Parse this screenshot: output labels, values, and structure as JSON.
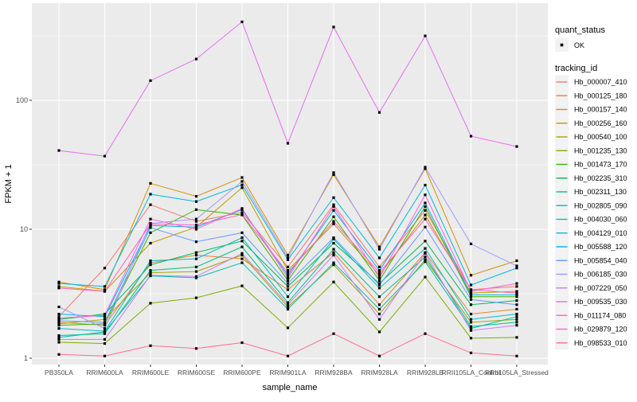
{
  "figure": {
    "background": "#FFFFFF",
    "panel_background": "#EBEBEB",
    "grid_color": "#FFFFFF",
    "point_color": "#000000",
    "axis_text_color": "#4D4D4D",
    "title_color": "#000000",
    "legend_key_background": "#F2F2F2"
  },
  "legend": {
    "quant_status_title": "quant_status",
    "ok_label": "OK",
    "tracking_id_title": "tracking_id"
  },
  "chart_data": {
    "type": "line",
    "title": "",
    "xlabel": "sample_name",
    "ylabel": "FPKM + 1",
    "y_scale": "log10",
    "ylim": [
      0.9,
      560
    ],
    "grid": true,
    "legend_position": "right",
    "y_ticks": [
      1,
      10,
      100
    ],
    "y_tick_labels": [
      "1",
      "10",
      "100"
    ],
    "y_minor_ticks": [
      3.162,
      31.62,
      316.2
    ],
    "categories": [
      "PB350LA",
      "RRIM600LA",
      "RRIM600LE",
      "RRIM600SE",
      "RRIM600PE",
      "RRIM901LA",
      "RRIM928BA",
      "RRIM928LA",
      "RRIM928LB",
      "RRII105LA_Control",
      "RRII105LA_Stressed"
    ],
    "quant_status": "OK",
    "series": [
      {
        "name": "Hb_000007_410",
        "color": "#F8766D",
        "values": [
          2.1,
          5.0,
          15.5,
          11.5,
          13.5,
          5.1,
          15.5,
          5.1,
          14.0,
          3.4,
          3.6
        ]
      },
      {
        "name": "Hb_000125_180",
        "color": "#EA8331",
        "values": [
          1.9,
          1.8,
          5.5,
          6.3,
          5.9,
          3.4,
          6.6,
          2.6,
          6.6,
          2.2,
          2.4
        ]
      },
      {
        "name": "Hb_000157_140",
        "color": "#D89000",
        "values": [
          3.9,
          3.4,
          22.7,
          18.0,
          25.2,
          6.3,
          26.5,
          7.3,
          29.5,
          4.4,
          5.7
        ]
      },
      {
        "name": "Hb_000256_160",
        "color": "#C09B00",
        "values": [
          3.6,
          3.3,
          7.8,
          10.4,
          21.0,
          4.8,
          11.0,
          4.4,
          12.9,
          3.2,
          3.3
        ]
      },
      {
        "name": "Hb_000540_100",
        "color": "#A3A500",
        "values": [
          1.85,
          2.0,
          4.6,
          4.7,
          6.3,
          2.5,
          5.3,
          2.2,
          5.8,
          1.9,
          2.0
        ]
      },
      {
        "name": "Hb_001235_130",
        "color": "#7CAE00",
        "values": [
          1.33,
          1.3,
          2.67,
          2.94,
          3.64,
          1.72,
          3.9,
          1.6,
          4.26,
          1.43,
          1.45
        ]
      },
      {
        "name": "Hb_001473_170",
        "color": "#39B600",
        "values": [
          1.8,
          1.85,
          9.4,
          14.2,
          12.9,
          4.0,
          12.5,
          4.0,
          15.0,
          3.0,
          3.0
        ]
      },
      {
        "name": "Hb_002235_310",
        "color": "#00BB4E",
        "values": [
          2.0,
          2.2,
          5.3,
          6.6,
          8.1,
          3.6,
          7.8,
          3.8,
          8.1,
          2.6,
          2.8
        ]
      },
      {
        "name": "Hb_002311_130",
        "color": "#00C087",
        "values": [
          1.5,
          1.55,
          4.8,
          5.1,
          7.3,
          2.7,
          7.0,
          3.0,
          6.1,
          1.76,
          1.9
        ]
      },
      {
        "name": "Hb_002805_090",
        "color": "#00C0AF",
        "values": [
          1.45,
          1.6,
          4.35,
          4.2,
          5.5,
          2.4,
          5.5,
          2.4,
          5.6,
          1.7,
          2.1
        ]
      },
      {
        "name": "Hb_004030_060",
        "color": "#00BFC4",
        "values": [
          1.7,
          1.62,
          5.7,
          5.9,
          8.6,
          3.0,
          8.4,
          3.5,
          7.1,
          2.0,
          2.2
        ]
      },
      {
        "name": "Hb_004129_010",
        "color": "#00BADE",
        "values": [
          3.8,
          3.6,
          18.7,
          16.4,
          22.1,
          5.8,
          17.6,
          6.0,
          22.0,
          3.7,
          5.0
        ]
      },
      {
        "name": "Hb_005588_120",
        "color": "#00B0F6",
        "values": [
          2.2,
          2.1,
          10.7,
          10.4,
          14.2,
          4.4,
          14.0,
          4.8,
          16.0,
          3.1,
          3.1
        ]
      },
      {
        "name": "Hb_005854_040",
        "color": "#619CFF",
        "values": [
          1.95,
          1.9,
          10.3,
          8.0,
          9.4,
          3.8,
          8.6,
          3.7,
          10.4,
          2.85,
          2.6
        ]
      },
      {
        "name": "Hb_006185_030",
        "color": "#A099FF",
        "values": [
          2.5,
          1.7,
          11.1,
          12.0,
          23.5,
          6.0,
          27.5,
          7.0,
          30.3,
          7.7,
          5.2
        ]
      },
      {
        "name": "Hb_007229_050",
        "color": "#C77CFF",
        "values": [
          1.4,
          1.4,
          4.4,
          4.3,
          6.5,
          2.6,
          6.3,
          2.0,
          6.5,
          1.64,
          1.8
        ]
      },
      {
        "name": "Hb_009535_030",
        "color": "#E76BF3",
        "values": [
          40.8,
          36.9,
          142,
          209,
          406,
          46.4,
          370,
          80.5,
          316,
          52.7,
          43.8
        ]
      },
      {
        "name": "Hb_011174_080",
        "color": "#FA62DB",
        "values": [
          2.05,
          2.15,
          12.0,
          10.0,
          14.5,
          4.2,
          15.0,
          4.2,
          18.5,
          3.3,
          3.8
        ]
      },
      {
        "name": "Hb_029879_120",
        "color": "#FF61C3",
        "values": [
          3.5,
          3.3,
          11.0,
          10.8,
          13.0,
          4.6,
          11.5,
          4.6,
          12.0,
          3.4,
          3.2
        ]
      },
      {
        "name": "Hb_098533_010",
        "color": "#FF6C91",
        "values": [
          1.07,
          1.04,
          1.25,
          1.19,
          1.32,
          1.04,
          1.55,
          1.04,
          1.55,
          1.1,
          1.04
        ]
      }
    ]
  }
}
